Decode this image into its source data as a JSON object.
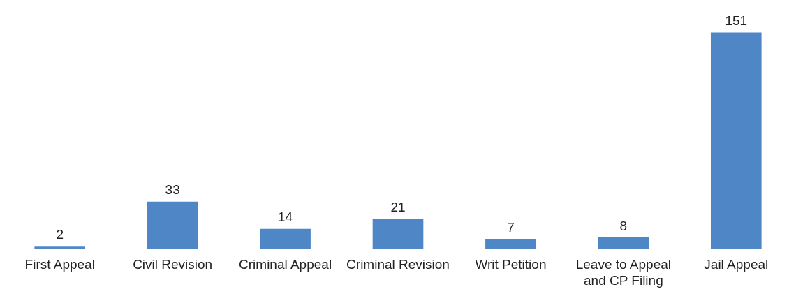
{
  "chart_data": {
    "type": "bar",
    "categories": [
      "First Appeal",
      "Civil Revision",
      "Criminal Appeal",
      "Criminal Revision",
      "Writ Petition",
      "Leave to Appeal and CP Filing",
      "Jail Appeal"
    ],
    "values": [
      2,
      33,
      14,
      21,
      7,
      8,
      151
    ],
    "color": "#4f86c6",
    "data_labels": true,
    "grid": false,
    "legend": false
  }
}
